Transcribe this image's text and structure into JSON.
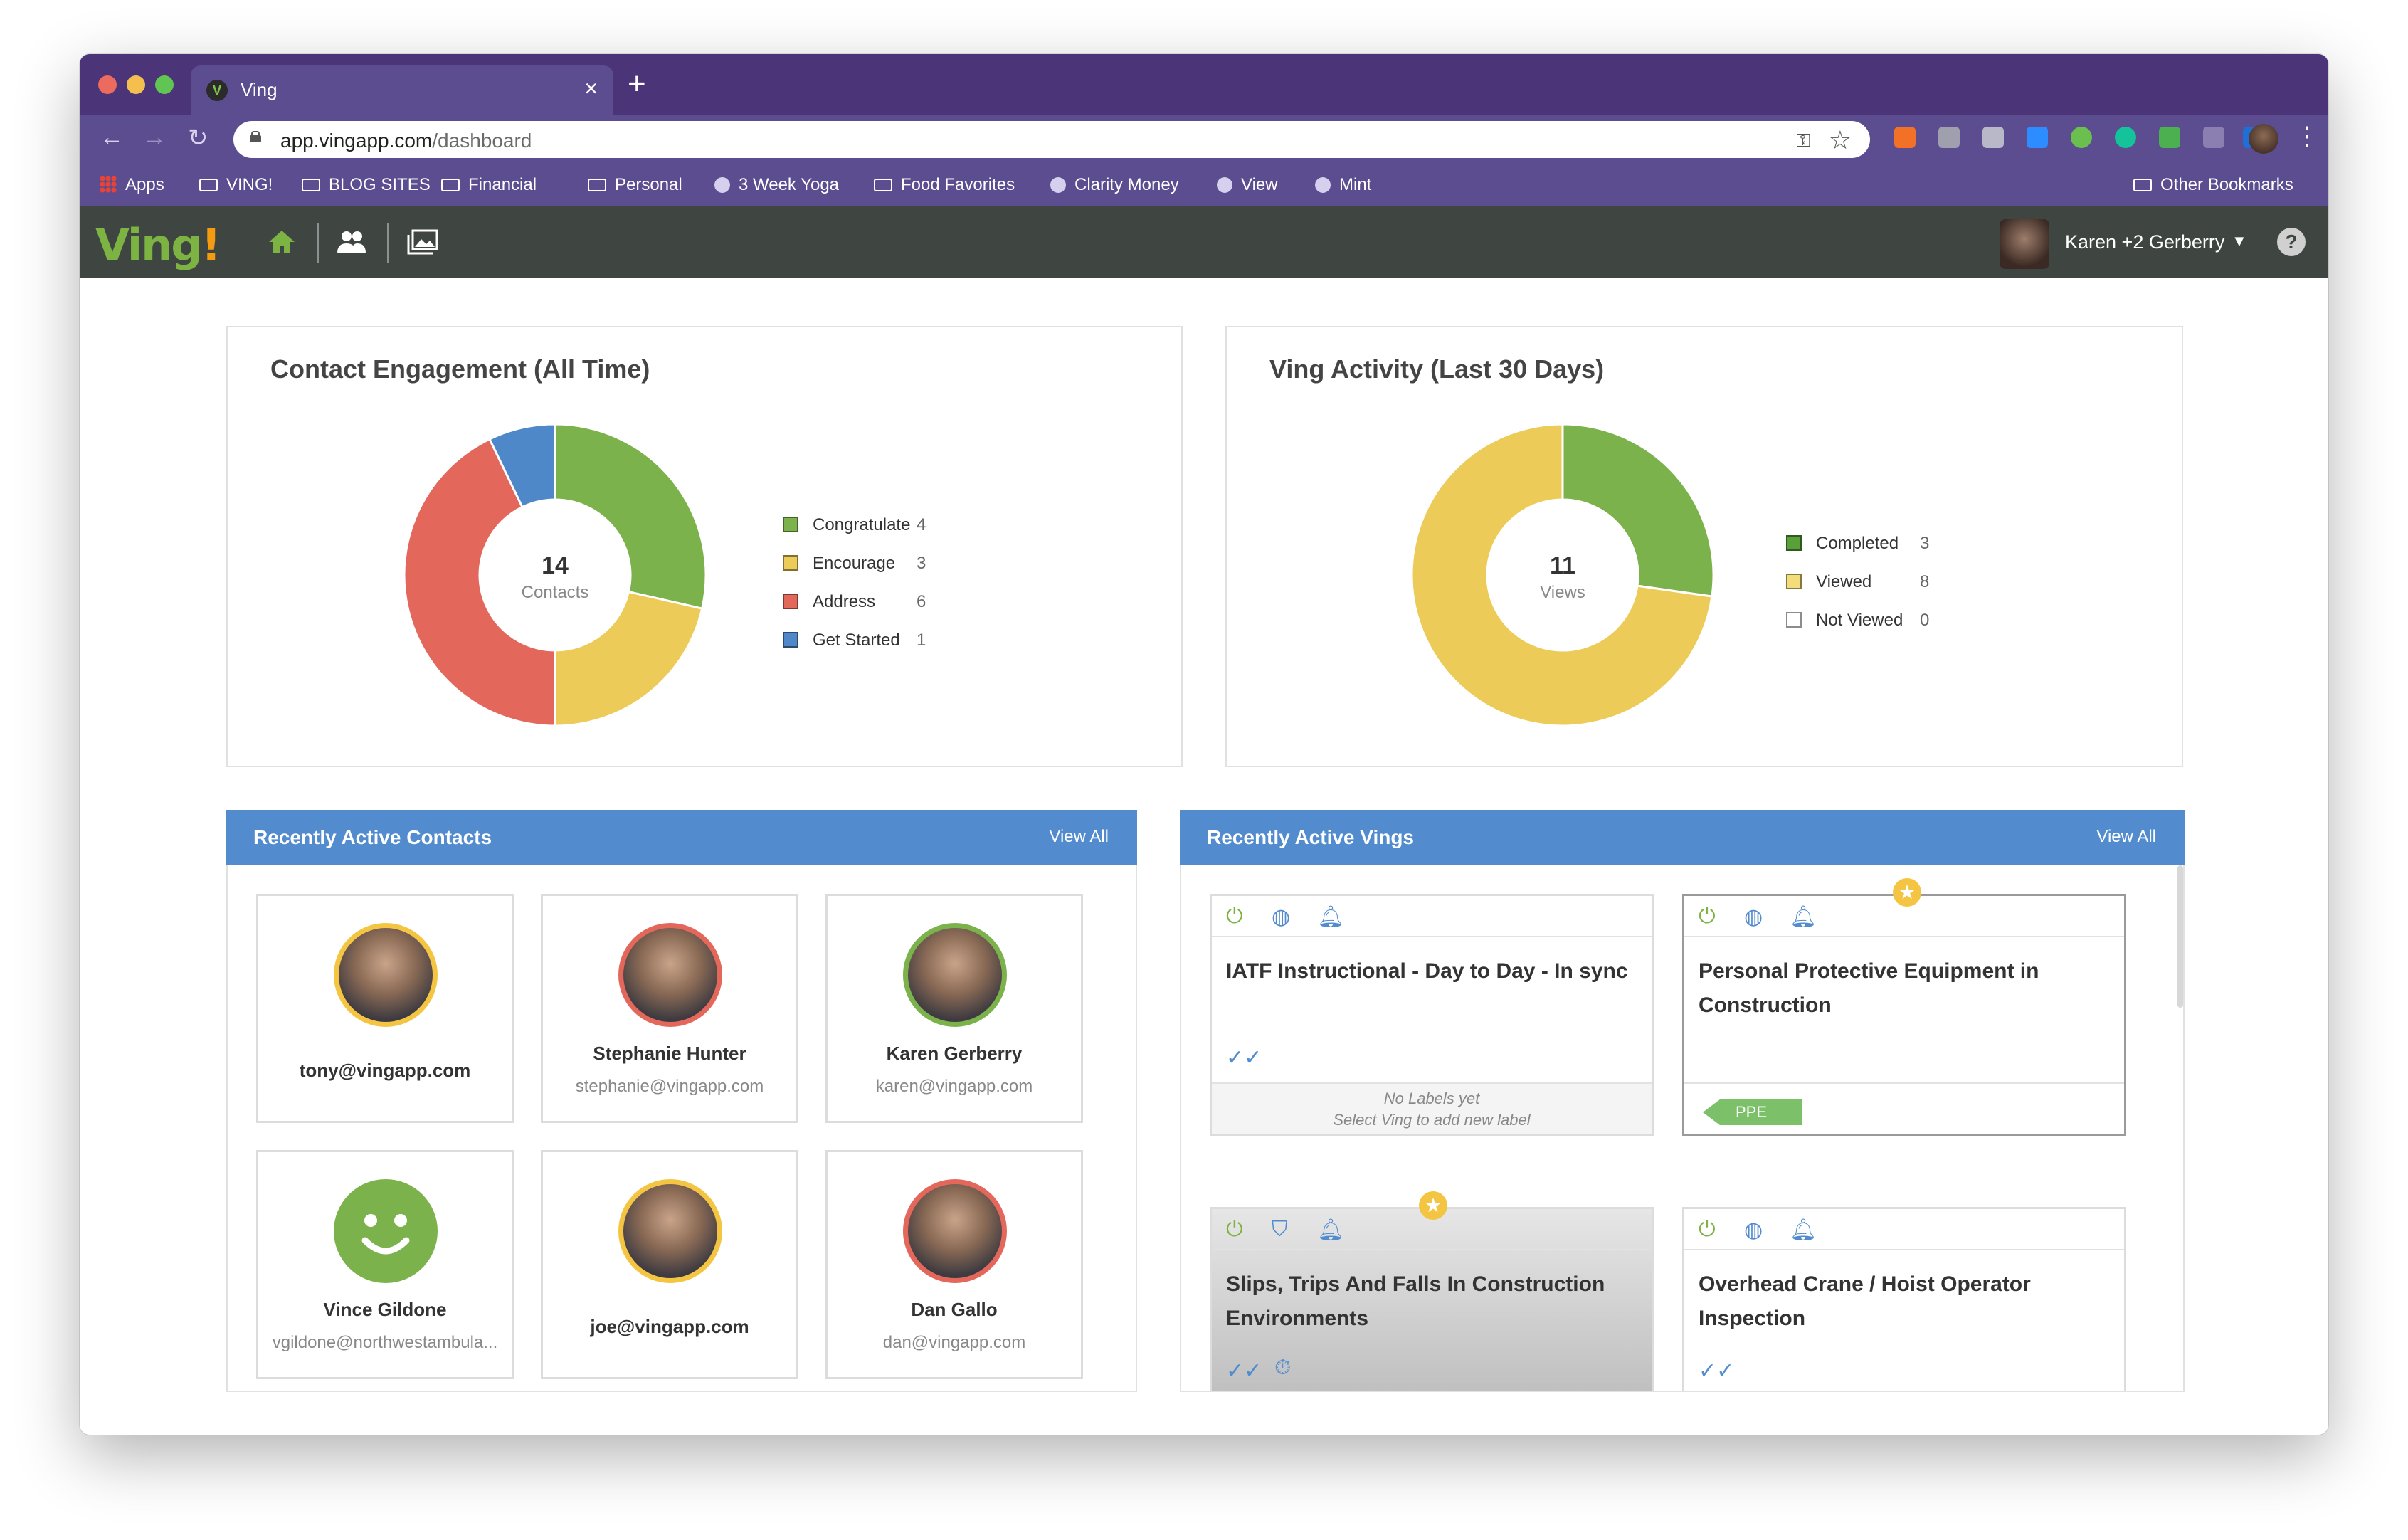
{
  "browser": {
    "tab_title": "Ving",
    "tab_favicon": "V",
    "new_tab": "+",
    "close_tab": "×",
    "url_host": "app.vingapp.com",
    "url_path": "/dashboard",
    "bookmarks": [
      "Apps",
      "VING!",
      "BLOG SITES",
      "Financial",
      "Personal",
      "3 Week Yoga",
      "Food Favorites",
      "Clarity Money",
      "View",
      "Mint"
    ],
    "other_bookmarks": "Other Bookmarks"
  },
  "header": {
    "logo": "Ving",
    "logo_bang": "!",
    "user_name": "Karen +2 Gerberry",
    "help": "?"
  },
  "engagement": {
    "title": "Contact Engagement (All Time)",
    "center_value": "14",
    "center_label": "Contacts",
    "legend": [
      {
        "label": "Congratulate",
        "value": "4",
        "color": "#7cb24b"
      },
      {
        "label": "Encourage",
        "value": "3",
        "color": "#eccb58"
      },
      {
        "label": "Address",
        "value": "6",
        "color": "#e4675c"
      },
      {
        "label": "Get Started",
        "value": "1",
        "color": "#4f88c8"
      }
    ]
  },
  "activity": {
    "title": "Ving Activity (Last 30 Days)",
    "center_value": "11",
    "center_label": "Views",
    "legend": [
      {
        "label": "Completed",
        "value": "3",
        "color": "#5aa03a"
      },
      {
        "label": "Viewed",
        "value": "8",
        "color": "#f3dc7a"
      },
      {
        "label": "Not Viewed",
        "value": "0",
        "color": "#ffffff"
      }
    ]
  },
  "contacts_panel": {
    "title": "Recently Active Contacts",
    "view_all": "View All",
    "contacts": [
      {
        "name": "",
        "email": "tony@vingapp.com",
        "ring": "#f4c542",
        "avatar": "photo"
      },
      {
        "name": "Stephanie Hunter",
        "email": "stephanie@vingapp.com",
        "ring": "#e4675c",
        "avatar": "photo"
      },
      {
        "name": "Karen Gerberry",
        "email": "karen@vingapp.com",
        "ring": "#7cb24b",
        "avatar": "photo"
      },
      {
        "name": "Vince Gildone",
        "email": "vgildone@northwestambula...",
        "ring": "#7cb24b",
        "avatar": "smiley"
      },
      {
        "name": "",
        "email": "joe@vingapp.com",
        "ring": "#f4c542",
        "avatar": "photo"
      },
      {
        "name": "Dan Gallo",
        "email": "dan@vingapp.com",
        "ring": "#e4675c",
        "avatar": "photo"
      }
    ]
  },
  "vings_panel": {
    "title": "Recently Active Vings",
    "view_all": "View All",
    "vings": [
      {
        "title": "IATF Instructional - Day to Day - In sync",
        "no_labels": "No Labels yet",
        "no_labels_hint": "Select Ving to add new label"
      },
      {
        "title": "Personal Protective Equipment in Construction",
        "tag": "PPE"
      },
      {
        "title": "Slips, Trips And Falls In Construction Environments"
      },
      {
        "title": "Overhead Crane / Hoist Operator Inspection"
      }
    ]
  },
  "icons": {
    "power": "power-icon",
    "globe": "globe-icon",
    "bell": "bell-icon",
    "shield": "shield-icon",
    "double_check": "double-check-icon",
    "timer": "timer-icon",
    "star": "star-icon"
  },
  "chart_data": [
    {
      "type": "pie",
      "title": "Contact Engagement (All Time)",
      "categories": [
        "Congratulate",
        "Encourage",
        "Address",
        "Get Started"
      ],
      "values": [
        4,
        3,
        6,
        1
      ],
      "colors": [
        "#7cb24b",
        "#eccb58",
        "#e4675c",
        "#4f88c8"
      ]
    },
    {
      "type": "pie",
      "title": "Ving Activity (Last 30 Days)",
      "categories": [
        "Completed",
        "Viewed",
        "Not Viewed"
      ],
      "values": [
        3,
        8,
        0
      ],
      "colors": [
        "#7cb24b",
        "#eccb58",
        "#ffffff"
      ]
    }
  ]
}
